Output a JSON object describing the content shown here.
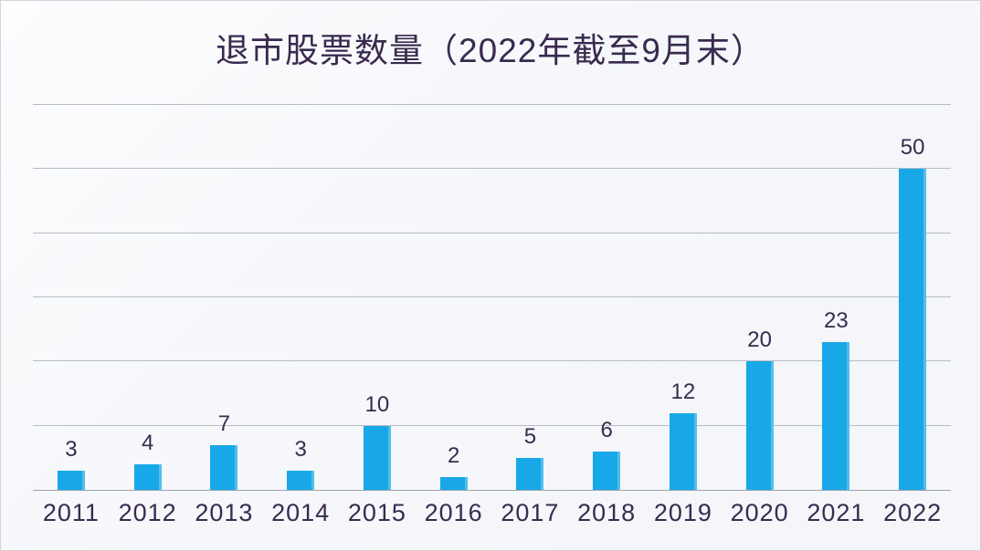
{
  "chart_data": {
    "type": "bar",
    "title": "退市股票数量（2022年截至9月末）",
    "categories": [
      "2011",
      "2012",
      "2013",
      "2014",
      "2015",
      "2016",
      "2017",
      "2018",
      "2019",
      "2020",
      "2021",
      "2022"
    ],
    "values": [
      3,
      4,
      7,
      3,
      10,
      2,
      5,
      6,
      12,
      20,
      23,
      50
    ],
    "xlabel": "",
    "ylabel": "",
    "ylim": [
      0,
      60
    ],
    "grid_step": 10,
    "grid": "horizontal",
    "legend_position": "none",
    "y_tick_labels_visible": false,
    "bar_color": "#18a8e8",
    "text_color": "#3a2a4e",
    "gridline_color": "#b7bbc4",
    "axis_line_color": "#9fa3ad",
    "background_color": "#f5f7fb"
  }
}
